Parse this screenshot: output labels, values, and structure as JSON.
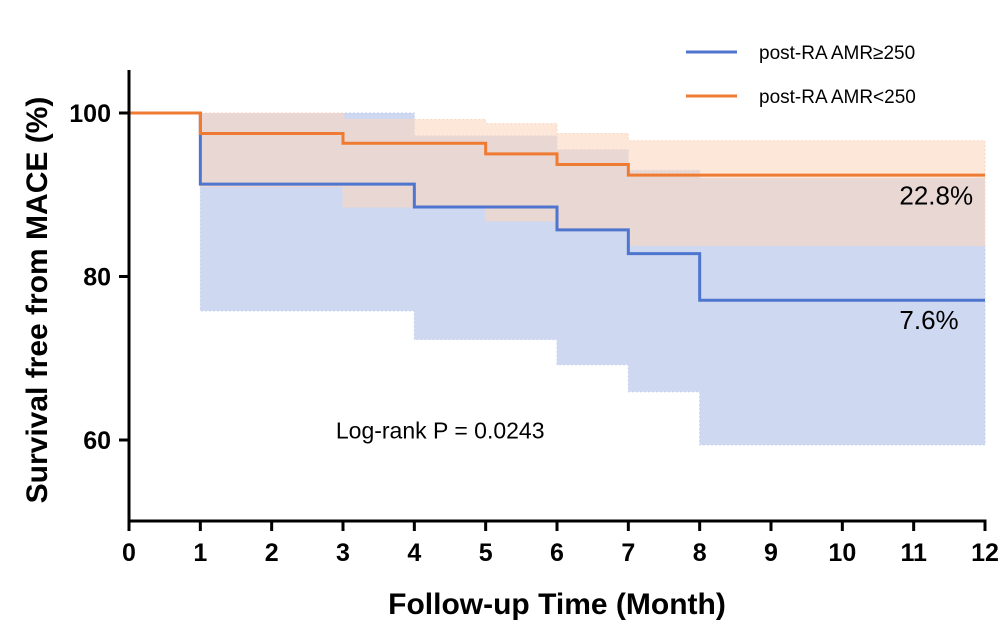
{
  "chart_data": {
    "type": "line",
    "subtype": "kaplan-meier-step",
    "title": "",
    "xlabel": "Follow-up Time (Month)",
    "ylabel": "Survival free from MACE (%)",
    "xlim": [
      0,
      12
    ],
    "ylim": [
      50,
      105
    ],
    "x_ticks": [
      "0",
      "1",
      "2",
      "3",
      "4",
      "5",
      "6",
      "7",
      "8",
      "9",
      "10",
      "11",
      "12"
    ],
    "y_ticks": [
      "60",
      "80",
      "100"
    ],
    "y_tick_values": [
      60,
      80,
      100
    ],
    "grid": false,
    "legend_position": "top-right",
    "series": [
      {
        "name": "post-RA AMR≥250",
        "color": "#4f76cf",
        "band_color": "#c5d1ee",
        "x": [
          0,
          1,
          4,
          6,
          7,
          8,
          12
        ],
        "y": [
          100,
          91.3,
          88.5,
          85.7,
          82.8,
          77.1,
          77.1
        ],
        "ci_lower": [
          100,
          75.8,
          72.3,
          69.2,
          65.9,
          59.4,
          59.4
        ],
        "ci_upper": [
          100,
          100,
          97.2,
          95.5,
          93.0,
          92.0,
          92.0
        ]
      },
      {
        "name": "post-RA AMR<250",
        "color": "#ee7b31",
        "band_color": "#fbd7c0",
        "x": [
          0,
          1,
          3,
          5,
          6,
          7,
          12
        ],
        "y": [
          100,
          97.5,
          96.3,
          95.0,
          93.7,
          92.4,
          92.4
        ],
        "ci_lower": [
          100,
          91.0,
          88.5,
          86.8,
          85.6,
          83.8,
          83.8
        ],
        "ci_upper": [
          100,
          100,
          99.2,
          98.7,
          97.5,
          96.6,
          96.6
        ]
      }
    ],
    "annotations": [
      {
        "text": "22.8%",
        "x": 10.8,
        "y": 88.8
      },
      {
        "text": "7.6%",
        "x": 10.8,
        "y": 73.6
      },
      {
        "text": "Log-rank P = 0.0243",
        "x": 2.9,
        "y": 60.2
      }
    ]
  }
}
